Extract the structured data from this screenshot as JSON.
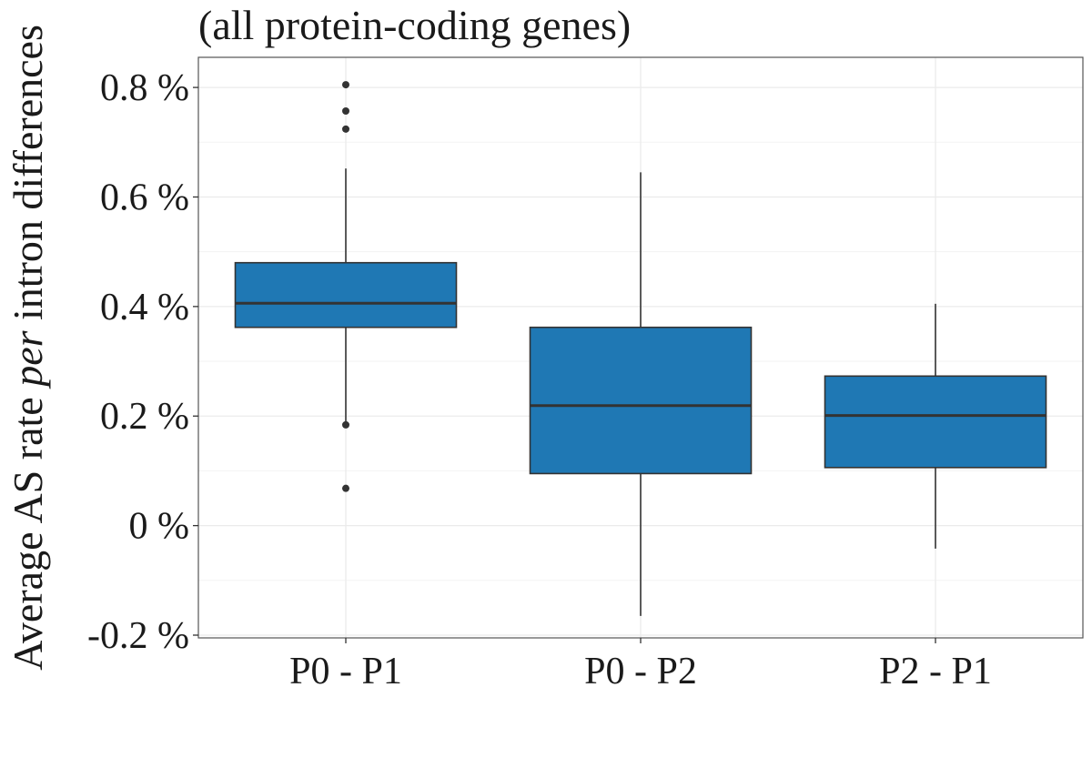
{
  "chart_data": {
    "type": "box",
    "title": "(all protein-coding genes)",
    "ylabel": {
      "before": "Average AS rate ",
      "italic": "per",
      "after": " intron differences"
    },
    "xlabel": "",
    "ylim": [
      -0.205,
      0.855
    ],
    "y_ticks": [
      -0.2,
      0,
      0.2,
      0.4,
      0.6,
      0.8
    ],
    "y_tick_labels": [
      "-0.2 %",
      "0 %",
      "0.2 %",
      "0.4 %",
      "0.6 %",
      "0.8 %"
    ],
    "y_minor_ticks": [
      -0.1,
      0.1,
      0.3,
      0.5,
      0.7
    ],
    "grid": true,
    "legend": "none",
    "color": "#1f78b4",
    "categories": [
      "P0 - P1",
      "P0 - P2",
      "P2 - P1"
    ],
    "boxes": [
      {
        "category": "P0 - P1",
        "whisker_low": 0.185,
        "q1": 0.362,
        "median": 0.406,
        "q3": 0.48,
        "whisker_high": 0.652,
        "outliers": [
          0.068,
          0.184,
          0.724,
          0.757,
          0.805
        ]
      },
      {
        "category": "P0 - P2",
        "whisker_low": -0.165,
        "q1": 0.095,
        "median": 0.219,
        "q3": 0.362,
        "whisker_high": 0.645,
        "outliers": []
      },
      {
        "category": "P2 - P1",
        "whisker_low": -0.042,
        "q1": 0.106,
        "median": 0.201,
        "q3": 0.273,
        "whisker_high": 0.405,
        "outliers": []
      }
    ]
  }
}
